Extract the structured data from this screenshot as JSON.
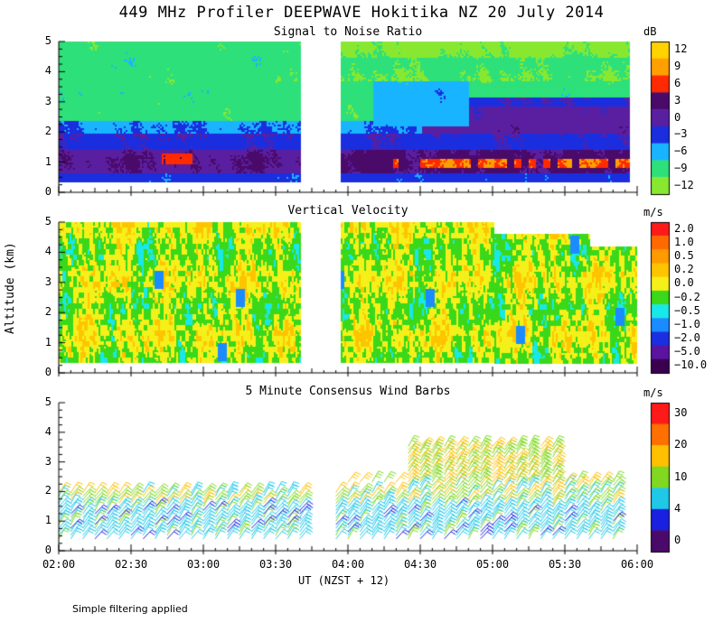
{
  "figure": {
    "title": "449 MHz Profiler DEEPWAVE Hokitika NZ 20 July 2014",
    "y_axis_label": "Altitude (km)",
    "x_axis_label": "UT  (NZST + 12)",
    "footnote": "Simple filtering applied"
  },
  "colors": {
    "background": "#ffffff",
    "axis": "#000000"
  },
  "chart_data": [
    {
      "type": "heatmap",
      "title": "Signal to Noise Ratio",
      "ylabel": "Altitude (km)",
      "xlabel": "UT  (NZST + 12)",
      "ylim": [
        0,
        5
      ],
      "xlim": [
        "02:00",
        "06:00"
      ],
      "xticks": [
        "02:00",
        "02:30",
        "03:00",
        "03:30",
        "04:00",
        "04:30",
        "05:00",
        "05:30",
        "06:00"
      ],
      "yticks": [
        "0",
        "1",
        "2",
        "3",
        "4",
        "5"
      ],
      "data_gap": [
        "03:45",
        "03:55"
      ],
      "altitude_range_km": [
        0.35,
        5.0
      ],
      "colorbar": {
        "unit": "dB",
        "ticks": [
          "12",
          "9",
          "6",
          "3",
          "0",
          "−3",
          "−6",
          "−9",
          "−12"
        ],
        "colors": [
          "#ffd200",
          "#ffa000",
          "#ff2a00",
          "#4a0a6a",
          "#5a1fa0",
          "#1a2ee0",
          "#19b4ff",
          "#2ee07a",
          "#88e830"
        ]
      }
    },
    {
      "type": "heatmap",
      "title": "Vertical Velocity",
      "ylabel": "Altitude (km)",
      "ylim": [
        0,
        5
      ],
      "xlim": [
        "02:00",
        "06:00"
      ],
      "yticks": [
        "0",
        "1",
        "2",
        "3",
        "4",
        "5"
      ],
      "data_gap": [
        "03:45",
        "03:55"
      ],
      "altitude_range_km": [
        0.35,
        5.0
      ],
      "colorbar": {
        "unit": "m/s",
        "ticks": [
          "2.0",
          "1.0",
          "0.5",
          "0.2",
          "0.0",
          "−0.2",
          "−0.5",
          "−1.0",
          "−2.0",
          "−5.0",
          "−10.0"
        ],
        "colors": [
          "#ff1a1a",
          "#ff6a00",
          "#ff9a00",
          "#ffc400",
          "#f5f01a",
          "#3ad81a",
          "#19e8e8",
          "#1a8cff",
          "#1a30e0",
          "#5a14a0",
          "#3a0050"
        ]
      }
    },
    {
      "type": "scatter",
      "title": "5 Minute Consensus Wind Barbs",
      "ylabel": "Altitude (km)",
      "xlabel": "UT  (NZST + 12)",
      "ylim": [
        0,
        5
      ],
      "xlim": [
        "02:00",
        "06:00"
      ],
      "xticks": [
        "02:00",
        "02:30",
        "03:00",
        "03:30",
        "04:00",
        "04:30",
        "05:00",
        "05:30",
        "06:00"
      ],
      "yticks": [
        "0",
        "1",
        "2",
        "3",
        "4",
        "5"
      ],
      "barb_interval_min": 5,
      "data_gap": [
        "03:45",
        "03:55"
      ],
      "colorbar": {
        "unit": "m/s",
        "ticks": [
          "30",
          "20",
          "10",
          "4",
          "0"
        ],
        "colors": [
          "#ff1a1a",
          "#ff7000",
          "#ffc000",
          "#80d820",
          "#20c8e8",
          "#1a20e0",
          "#4a0a6a"
        ]
      },
      "approx_wind_speed_ms": [
        {
          "altitude_km": [
            0.3,
            1.5
          ],
          "speed": [
            4,
            10
          ]
        },
        {
          "altitude_km": [
            1.5,
            2.3
          ],
          "speed": [
            8,
            14
          ]
        },
        {
          "altitude_km": [
            2.3,
            3.7
          ],
          "speed": [
            12,
            22
          ]
        }
      ]
    }
  ]
}
